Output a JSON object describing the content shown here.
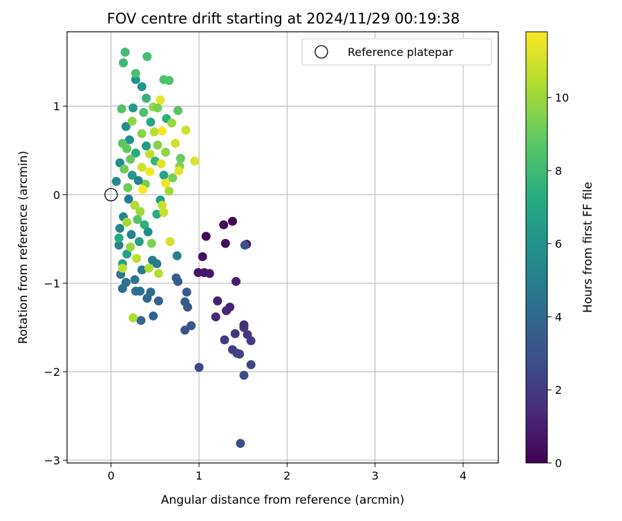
{
  "chart_data": {
    "type": "scatter",
    "title": "FOV centre drift starting at 2024/11/29 00:19:38",
    "xlabel": "Angular distance from reference (arcmin)",
    "ylabel": "Rotation from reference (arcmin)",
    "xlim": [
      -0.5,
      4.4
    ],
    "ylim": [
      -3.03,
      1.84
    ],
    "x_ticks": [
      0,
      1,
      2,
      3,
      4
    ],
    "y_ticks": [
      -3,
      -2,
      -1,
      0,
      1
    ],
    "x_tick_labels": [
      "0",
      "1",
      "2",
      "3",
      "4"
    ],
    "y_tick_labels": [
      "−3",
      "−2",
      "−1",
      "0",
      "1"
    ],
    "grid": true,
    "legend": {
      "placement": "top-right",
      "entries": [
        "Reference platepar"
      ]
    },
    "reference_point": {
      "x": 0,
      "y": 0,
      "label": "Reference platepar"
    },
    "colorbar": {
      "label": "Hours from first FF file",
      "colormap": "viridis",
      "range": [
        0,
        11.8
      ],
      "ticks": [
        0,
        2,
        4,
        6,
        8,
        10
      ],
      "tick_labels": [
        "0",
        "2",
        "4",
        "6",
        "8",
        "10"
      ]
    },
    "points": [
      {
        "x": 1.38,
        "y": -0.3,
        "h": 0.1
      },
      {
        "x": 1.28,
        "y": -0.34,
        "h": 0.2
      },
      {
        "x": 1.08,
        "y": -0.47,
        "h": 0.3
      },
      {
        "x": 1.3,
        "y": -0.55,
        "h": 0.4
      },
      {
        "x": 1.54,
        "y": -0.56,
        "h": 0.5
      },
      {
        "x": 1.04,
        "y": -0.7,
        "h": 0.6
      },
      {
        "x": 0.99,
        "y": -0.88,
        "h": 0.7
      },
      {
        "x": 1.06,
        "y": -0.88,
        "h": 0.8
      },
      {
        "x": 1.12,
        "y": -0.89,
        "h": 0.9
      },
      {
        "x": 1.42,
        "y": -0.98,
        "h": 1.0
      },
      {
        "x": 1.21,
        "y": -1.2,
        "h": 1.1
      },
      {
        "x": 1.35,
        "y": -1.27,
        "h": 1.2
      },
      {
        "x": 1.31,
        "y": -1.31,
        "h": 1.3
      },
      {
        "x": 1.19,
        "y": -1.38,
        "h": 1.4
      },
      {
        "x": 1.51,
        "y": -1.47,
        "h": 1.6
      },
      {
        "x": 1.51,
        "y": -1.5,
        "h": 1.7
      },
      {
        "x": 1.41,
        "y": -1.57,
        "h": 1.8
      },
      {
        "x": 1.55,
        "y": -1.58,
        "h": 1.9
      },
      {
        "x": 1.29,
        "y": -1.64,
        "h": 2.0
      },
      {
        "x": 1.59,
        "y": -1.65,
        "h": 2.1
      },
      {
        "x": 1.38,
        "y": -1.75,
        "h": 2.2
      },
      {
        "x": 1.43,
        "y": -1.79,
        "h": 2.3
      },
      {
        "x": 1.46,
        "y": -1.8,
        "h": 2.4
      },
      {
        "x": 1.59,
        "y": -1.92,
        "h": 2.5
      },
      {
        "x": 1.0,
        "y": -1.95,
        "h": 2.6
      },
      {
        "x": 1.51,
        "y": -2.04,
        "h": 2.7
      },
      {
        "x": 1.47,
        "y": -2.81,
        "h": 2.8
      },
      {
        "x": 1.52,
        "y": -0.57,
        "h": 2.9
      },
      {
        "x": 0.84,
        "y": -1.53,
        "h": 3.0
      },
      {
        "x": 0.91,
        "y": -1.48,
        "h": 3.1
      },
      {
        "x": 0.87,
        "y": -1.27,
        "h": 3.2
      },
      {
        "x": 0.84,
        "y": -1.21,
        "h": 3.3
      },
      {
        "x": 0.86,
        "y": -1.1,
        "h": 3.4
      },
      {
        "x": 0.76,
        "y": -0.98,
        "h": 3.5
      },
      {
        "x": 0.74,
        "y": -0.94,
        "h": 3.6
      },
      {
        "x": 0.54,
        "y": -1.2,
        "h": 3.7
      },
      {
        "x": 0.48,
        "y": -1.37,
        "h": 3.8
      },
      {
        "x": 0.34,
        "y": -1.42,
        "h": 3.9
      },
      {
        "x": 0.41,
        "y": -1.17,
        "h": 4.0
      },
      {
        "x": 0.45,
        "y": -1.1,
        "h": 4.1
      },
      {
        "x": 0.28,
        "y": -1.09,
        "h": 4.2
      },
      {
        "x": 0.33,
        "y": -1.09,
        "h": 4.3
      },
      {
        "x": 0.13,
        "y": -1.06,
        "h": 4.4
      },
      {
        "x": 0.17,
        "y": -0.99,
        "h": 4.5
      },
      {
        "x": 0.27,
        "y": -0.96,
        "h": 4.6
      },
      {
        "x": 0.11,
        "y": -0.9,
        "h": 4.7
      },
      {
        "x": 0.35,
        "y": -0.85,
        "h": 4.8
      },
      {
        "x": 0.47,
        "y": -0.74,
        "h": 4.9
      },
      {
        "x": 0.52,
        "y": -0.78,
        "h": 5.0
      },
      {
        "x": 0.75,
        "y": -0.69,
        "h": 5.1
      },
      {
        "x": 0.09,
        "y": -0.57,
        "h": 5.2
      },
      {
        "x": 0.23,
        "y": -0.45,
        "h": 5.3
      },
      {
        "x": 0.1,
        "y": -0.38,
        "h": 5.4
      },
      {
        "x": 0.14,
        "y": -0.25,
        "h": 5.5
      },
      {
        "x": 0.06,
        "y": 0.15,
        "h": 5.6
      },
      {
        "x": 0.1,
        "y": 0.36,
        "h": 5.7
      },
      {
        "x": 0.17,
        "y": 0.77,
        "h": 5.8
      },
      {
        "x": 0.21,
        "y": 0.62,
        "h": 5.9
      },
      {
        "x": 0.28,
        "y": 1.3,
        "h": 6.0
      },
      {
        "x": 0.35,
        "y": 1.22,
        "h": 6.1
      },
      {
        "x": 0.25,
        "y": 0.98,
        "h": 6.3
      },
      {
        "x": 0.4,
        "y": 0.55,
        "h": 6.4
      },
      {
        "x": 0.56,
        "y": -0.06,
        "h": 6.5
      },
      {
        "x": 0.32,
        "y": -0.53,
        "h": 6.6
      },
      {
        "x": 0.13,
        "y": -0.78,
        "h": 6.7
      },
      {
        "x": 0.18,
        "y": -0.67,
        "h": 6.8
      },
      {
        "x": 0.6,
        "y": 0.22,
        "h": 6.9
      },
      {
        "x": 0.45,
        "y": 0.82,
        "h": 7.0
      },
      {
        "x": 0.09,
        "y": -0.49,
        "h": 7.2
      },
      {
        "x": 0.52,
        "y": -0.22,
        "h": 7.3
      },
      {
        "x": 0.28,
        "y": 0.47,
        "h": 7.4
      },
      {
        "x": 0.63,
        "y": 0.86,
        "h": 7.5
      },
      {
        "x": 0.38,
        "y": -0.34,
        "h": 7.6
      },
      {
        "x": 0.14,
        "y": 1.49,
        "h": 8.0
      },
      {
        "x": 0.16,
        "y": 1.61,
        "h": 8.1
      },
      {
        "x": 0.41,
        "y": 1.56,
        "h": 8.2
      },
      {
        "x": 0.28,
        "y": 1.37,
        "h": 8.3
      },
      {
        "x": 0.6,
        "y": 1.3,
        "h": 8.4
      },
      {
        "x": 0.66,
        "y": 1.29,
        "h": 8.5
      },
      {
        "x": 0.12,
        "y": 0.97,
        "h": 8.6
      },
      {
        "x": 0.76,
        "y": 0.95,
        "h": 8.7
      },
      {
        "x": 0.13,
        "y": 0.58,
        "h": 8.8
      },
      {
        "x": 0.18,
        "y": 0.52,
        "h": 8.9
      },
      {
        "x": 0.22,
        "y": 0.4,
        "h": 9.0
      },
      {
        "x": 0.79,
        "y": 0.41,
        "h": 9.1
      },
      {
        "x": 0.15,
        "y": 0.29,
        "h": 9.2
      },
      {
        "x": 0.39,
        "y": 0.12,
        "h": 9.3
      },
      {
        "x": 0.7,
        "y": 0.19,
        "h": 9.4
      },
      {
        "x": 0.78,
        "y": 0.32,
        "h": 9.5
      },
      {
        "x": 0.53,
        "y": 0.56,
        "h": 9.6
      },
      {
        "x": 0.35,
        "y": 0.69,
        "h": 9.7
      },
      {
        "x": 0.24,
        "y": 0.83,
        "h": 9.8
      },
      {
        "x": 0.48,
        "y": 0.99,
        "h": 9.9
      },
      {
        "x": 0.69,
        "y": 0.81,
        "h": 10.0
      },
      {
        "x": 0.33,
        "y": -0.19,
        "h": 10.1
      },
      {
        "x": 0.18,
        "y": -0.31,
        "h": 10.2
      },
      {
        "x": 0.25,
        "y": -1.39,
        "h": 10.3
      },
      {
        "x": 0.43,
        "y": -0.83,
        "h": 10.4
      },
      {
        "x": 0.54,
        "y": -0.89,
        "h": 10.5
      },
      {
        "x": 0.13,
        "y": -0.83,
        "h": 10.6
      },
      {
        "x": 0.29,
        "y": -0.72,
        "h": 10.7
      },
      {
        "x": 0.6,
        "y": -0.2,
        "h": 10.8
      },
      {
        "x": 0.85,
        "y": 0.73,
        "h": 10.9
      },
      {
        "x": 0.73,
        "y": 0.58,
        "h": 11.0
      },
      {
        "x": 0.67,
        "y": -0.53,
        "h": 11.1
      },
      {
        "x": 0.95,
        "y": 0.38,
        "h": 11.2
      },
      {
        "x": 0.77,
        "y": 0.27,
        "h": 11.3
      },
      {
        "x": 0.56,
        "y": 1.07,
        "h": 11.4
      },
      {
        "x": 0.62,
        "y": 0.13,
        "h": 11.5
      },
      {
        "x": 0.44,
        "y": 0.26,
        "h": 11.6
      },
      {
        "x": 0.58,
        "y": 0.72,
        "h": 11.7
      },
      {
        "x": 0.36,
        "y": 0.06,
        "h": 11.8
      },
      {
        "x": 0.2,
        "y": -0.05,
        "h": 4.9
      },
      {
        "x": 0.31,
        "y": 0.16,
        "h": 5.3
      },
      {
        "x": 0.42,
        "y": -0.42,
        "h": 5.8
      },
      {
        "x": 0.24,
        "y": 0.22,
        "h": 6.2
      },
      {
        "x": 0.5,
        "y": 0.38,
        "h": 7.8
      },
      {
        "x": 0.37,
        "y": 0.93,
        "h": 8.4
      },
      {
        "x": 0.62,
        "y": 0.48,
        "h": 9.8
      },
      {
        "x": 0.27,
        "y": -0.12,
        "h": 10.4
      },
      {
        "x": 0.46,
        "y": -0.55,
        "h": 9.5
      },
      {
        "x": 0.58,
        "y": -0.12,
        "h": 10.9
      },
      {
        "x": 0.19,
        "y": 0.08,
        "h": 9.2
      },
      {
        "x": 0.49,
        "y": 0.71,
        "h": 10.6
      },
      {
        "x": 0.3,
        "y": -0.28,
        "h": 8.6
      },
      {
        "x": 0.4,
        "y": 1.09,
        "h": 7.7
      },
      {
        "x": 0.53,
        "y": 0.98,
        "h": 9.4
      },
      {
        "x": 0.66,
        "y": 0.04,
        "h": 10.2
      },
      {
        "x": 0.22,
        "y": -0.59,
        "h": 9.9
      },
      {
        "x": 0.35,
        "y": 0.31,
        "h": 11.0
      },
      {
        "x": 0.44,
        "y": 0.46,
        "h": 10.7
      },
      {
        "x": 0.57,
        "y": 0.35,
        "h": 11.3
      }
    ]
  }
}
